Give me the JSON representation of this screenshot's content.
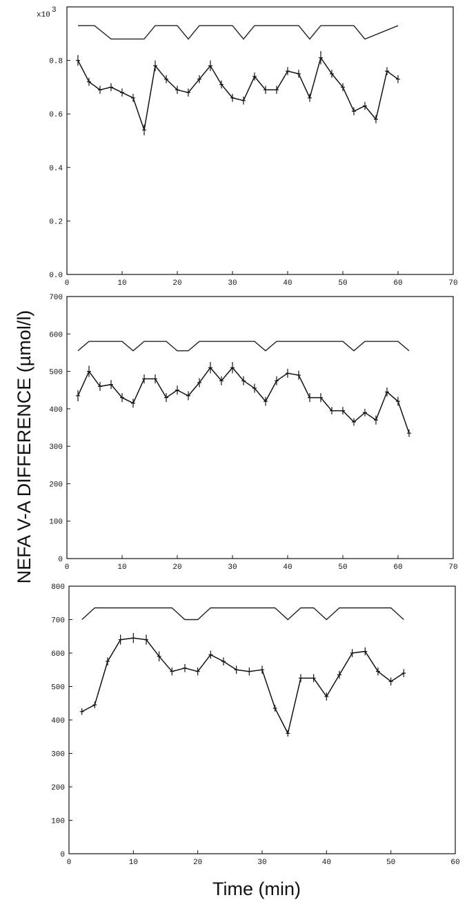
{
  "figure": {
    "ylabel": "NEFA V-A DIFFERENCE (µmol/l)",
    "xlabel": "Time (min)"
  },
  "chart_data": [
    {
      "type": "line",
      "title": "",
      "xlabel": "",
      "ylabel": "",
      "y_multiplier_label": "x10",
      "y_multiplier_exp": "3",
      "xlim": [
        0,
        70
      ],
      "ylim": [
        0,
        1.0
      ],
      "xticks": [
        0,
        10,
        20,
        30,
        40,
        50,
        60,
        70
      ],
      "xtick_labels": [
        "0",
        "10",
        "20",
        "30",
        "40",
        "50",
        "60",
        "70"
      ],
      "yticks": [
        0,
        0.2,
        0.4,
        0.6,
        0.8
      ],
      "ytick_labels": [
        "0.0",
        "0.2",
        "0.4",
        "0.6",
        "0.8"
      ],
      "grid": false,
      "series": [
        {
          "x": [
            2,
            4,
            6,
            8,
            10,
            12,
            14,
            16,
            18,
            20,
            22,
            24,
            26,
            28,
            30,
            32,
            34,
            36,
            38,
            40,
            42,
            44,
            46,
            48,
            50,
            52,
            54,
            56,
            58,
            60
          ],
          "y": [
            0.8,
            0.72,
            0.69,
            0.7,
            0.68,
            0.66,
            0.54,
            0.78,
            0.73,
            0.69,
            0.68,
            0.73,
            0.78,
            0.71,
            0.66,
            0.65,
            0.74,
            0.69,
            0.69,
            0.76,
            0.75,
            0.66,
            0.81,
            0.75,
            0.7,
            0.61,
            0.63,
            0.58,
            0.76,
            0.73
          ],
          "err": [
            0.02,
            0.015,
            0.015,
            0.015,
            0.015,
            0.015,
            0.02,
            0.02,
            0.015,
            0.015,
            0.015,
            0.015,
            0.02,
            0.015,
            0.015,
            0.015,
            0.015,
            0.015,
            0.015,
            0.015,
            0.015,
            0.015,
            0.025,
            0.015,
            0.015,
            0.015,
            0.015,
            0.015,
            0.015,
            0.015
          ]
        }
      ],
      "bar_trace": {
        "x": [
          2,
          5,
          8,
          14,
          16,
          20,
          22,
          24,
          30,
          32,
          34,
          42,
          44,
          46,
          52,
          54,
          60
        ],
        "y": [
          0.93,
          0.93,
          0.88,
          0.88,
          0.93,
          0.93,
          0.88,
          0.93,
          0.93,
          0.88,
          0.93,
          0.93,
          0.88,
          0.93,
          0.93,
          0.88,
          0.93
        ]
      }
    },
    {
      "type": "line",
      "title": "",
      "xlabel": "",
      "ylabel": "",
      "xlim": [
        0,
        70
      ],
      "ylim": [
        0,
        700
      ],
      "xticks": [
        0,
        10,
        20,
        30,
        40,
        50,
        60,
        70
      ],
      "xtick_labels": [
        "0",
        "10",
        "20",
        "30",
        "40",
        "50",
        "60",
        "70"
      ],
      "yticks": [
        0,
        100,
        200,
        300,
        400,
        500,
        600,
        700
      ],
      "ytick_labels": [
        "0",
        "100",
        "200",
        "300",
        "400",
        "500",
        "600",
        "700"
      ],
      "grid": false,
      "series": [
        {
          "x": [
            2,
            4,
            6,
            8,
            10,
            12,
            14,
            16,
            18,
            20,
            22,
            24,
            26,
            28,
            30,
            32,
            34,
            36,
            38,
            40,
            42,
            44,
            46,
            48,
            50,
            52,
            54,
            56,
            58,
            60,
            62
          ],
          "y": [
            435,
            500,
            460,
            465,
            430,
            415,
            480,
            480,
            430,
            450,
            435,
            470,
            510,
            475,
            510,
            475,
            455,
            420,
            475,
            495,
            490,
            430,
            430,
            395,
            395,
            365,
            390,
            370,
            445,
            420,
            335
          ],
          "err": [
            15,
            15,
            12,
            12,
            12,
            12,
            12,
            12,
            12,
            12,
            12,
            12,
            15,
            12,
            15,
            12,
            12,
            12,
            12,
            12,
            12,
            12,
            12,
            10,
            10,
            10,
            10,
            12,
            12,
            12,
            10
          ]
        }
      ],
      "bar_trace": {
        "x": [
          2,
          4,
          10,
          12,
          14,
          18,
          20,
          22,
          24,
          34,
          36,
          38,
          50,
          52,
          54,
          60,
          62
        ],
        "y": [
          555,
          580,
          580,
          555,
          580,
          580,
          555,
          555,
          580,
          580,
          555,
          580,
          580,
          555,
          580,
          580,
          555
        ]
      }
    },
    {
      "type": "line",
      "title": "",
      "xlabel": "",
      "ylabel": "",
      "xlim": [
        0,
        60
      ],
      "ylim": [
        0,
        800
      ],
      "xticks": [
        0,
        10,
        20,
        30,
        40,
        50,
        60
      ],
      "xtick_labels": [
        "0",
        "10",
        "20",
        "30",
        "40",
        "50",
        "60"
      ],
      "yticks": [
        0,
        100,
        200,
        300,
        400,
        500,
        600,
        700,
        800
      ],
      "ytick_labels": [
        "0",
        "100",
        "200",
        "300",
        "400",
        "500",
        "600",
        "700",
        "800"
      ],
      "grid": false,
      "series": [
        {
          "x": [
            2,
            4,
            6,
            8,
            10,
            12,
            14,
            16,
            18,
            20,
            22,
            24,
            26,
            28,
            30,
            32,
            34,
            36,
            38,
            40,
            42,
            44,
            46,
            48,
            50,
            52
          ],
          "y": [
            425,
            445,
            575,
            640,
            645,
            640,
            590,
            545,
            555,
            545,
            595,
            575,
            550,
            545,
            550,
            435,
            360,
            525,
            525,
            470,
            535,
            600,
            605,
            545,
            515,
            540
          ],
          "err": [
            10,
            10,
            12,
            15,
            15,
            15,
            15,
            12,
            12,
            12,
            12,
            12,
            12,
            12,
            12,
            10,
            10,
            12,
            12,
            12,
            12,
            12,
            12,
            12,
            12,
            12
          ]
        }
      ],
      "bar_trace": {
        "x": [
          2,
          4,
          16,
          18,
          20,
          22,
          32,
          34,
          36,
          38,
          40,
          42,
          50,
          52
        ],
        "y": [
          700,
          735,
          735,
          700,
          700,
          735,
          735,
          700,
          735,
          735,
          700,
          735,
          735,
          700
        ]
      }
    }
  ]
}
